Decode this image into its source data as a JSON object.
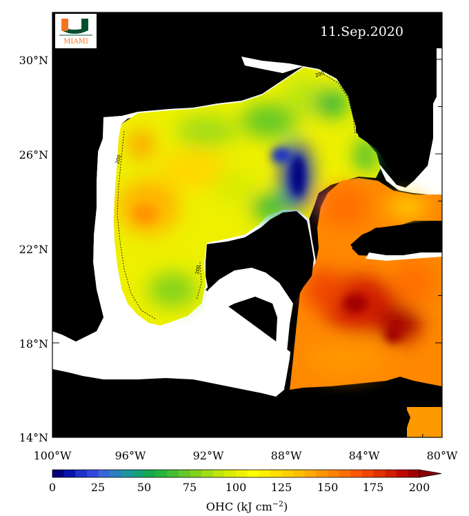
{
  "date": "11.Sep.2020",
  "logo": {
    "letter": "U",
    "text": "MIAMI",
    "green": "#005030",
    "orange": "#f47321"
  },
  "axes": {
    "lon_labels": [
      "100°W",
      "96°W",
      "92°W",
      "88°W",
      "84°W",
      "80°W"
    ],
    "lat_labels": [
      "30°N",
      "26°N",
      "22°N",
      "18°N",
      "14°N"
    ]
  },
  "colorbar": {
    "labels": [
      "0",
      "25",
      "50",
      "75",
      "100",
      "125",
      "150",
      "175",
      "200"
    ],
    "title": "OHC (kJ cm",
    "title_sup": "−2",
    "title_end": ")",
    "colors": [
      "#00007a",
      "#0a14a8",
      "#1e32c8",
      "#3046dc",
      "#3a64dc",
      "#2a80c0",
      "#1e96a0",
      "#14a078",
      "#14aa50",
      "#28b43c",
      "#46be32",
      "#64c828",
      "#82d21e",
      "#a0dc14",
      "#bee60a",
      "#d8ec00",
      "#f0f000",
      "#ffff00",
      "#fff000",
      "#ffe000",
      "#ffd000",
      "#ffbe00",
      "#ffaa00",
      "#ff9600",
      "#ff8200",
      "#ff6e00",
      "#ff5a00",
      "#f04600",
      "#e03200",
      "#d01e00",
      "#bc0a00",
      "#a00000"
    ]
  },
  "contour_label": "200",
  "colors": {
    "land": "#000000",
    "ocean_nodata": "#ffffff"
  }
}
